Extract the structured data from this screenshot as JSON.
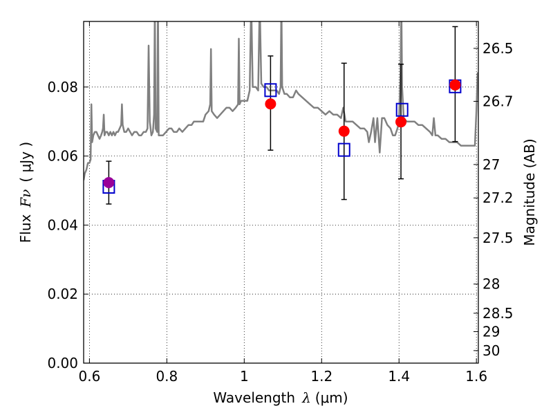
{
  "chart_data": {
    "type": "scatter",
    "title": "",
    "xlabel": "Wavelength",
    "xlabel_symbol": "λ",
    "xlabel_unit": "(μm)",
    "ylabel": "Flux",
    "ylabel_symbol": "Fν",
    "ylabel_unit": "( μJy )",
    "y2label": "Magnitude (AB)",
    "xlim": [
      0.585,
      1.605
    ],
    "ylim": [
      0.0,
      0.099
    ],
    "grid": true,
    "x_ticks": [
      0.6,
      0.8,
      1.0,
      1.2,
      1.4,
      1.6
    ],
    "x_tick_labels": [
      "0.6",
      "0.8",
      "1",
      "1.2",
      "1.4",
      "1.6"
    ],
    "y_ticks": [
      0.0,
      0.02,
      0.04,
      0.06,
      0.08
    ],
    "y_tick_labels": [
      "0.00",
      "0.02",
      "0.04",
      "0.06",
      "0.08"
    ],
    "mag_ticks": [
      26.5,
      26.7,
      27,
      27.2,
      27.5,
      28,
      28.5,
      29,
      30
    ],
    "mag_tick_labels": [
      "26.5",
      "26.7",
      "27",
      "27.2",
      "27.5",
      "28",
      "28.5",
      "29",
      "30"
    ],
    "series": [
      {
        "kind": "spectrum",
        "color": "#808080",
        "points": [
          [
            0.585,
            0.053
          ],
          [
            0.588,
            0.055
          ],
          [
            0.592,
            0.056
          ],
          [
            0.596,
            0.058
          ],
          [
            0.6,
            0.058
          ],
          [
            0.603,
            0.059
          ],
          [
            0.605,
            0.075
          ],
          [
            0.607,
            0.064
          ],
          [
            0.61,
            0.066
          ],
          [
            0.614,
            0.067
          ],
          [
            0.618,
            0.067
          ],
          [
            0.622,
            0.066
          ],
          [
            0.626,
            0.065
          ],
          [
            0.63,
            0.066
          ],
          [
            0.633,
            0.067
          ],
          [
            0.635,
            0.068
          ],
          [
            0.637,
            0.072
          ],
          [
            0.639,
            0.066
          ],
          [
            0.642,
            0.067
          ],
          [
            0.646,
            0.067
          ],
          [
            0.65,
            0.066
          ],
          [
            0.654,
            0.067
          ],
          [
            0.658,
            0.066
          ],
          [
            0.662,
            0.067
          ],
          [
            0.666,
            0.066
          ],
          [
            0.67,
            0.067
          ],
          [
            0.674,
            0.067
          ],
          [
            0.678,
            0.068
          ],
          [
            0.682,
            0.069
          ],
          [
            0.684,
            0.075
          ],
          [
            0.686,
            0.069
          ],
          [
            0.69,
            0.067
          ],
          [
            0.695,
            0.067
          ],
          [
            0.7,
            0.068
          ],
          [
            0.705,
            0.067
          ],
          [
            0.71,
            0.066
          ],
          [
            0.716,
            0.067
          ],
          [
            0.722,
            0.067
          ],
          [
            0.728,
            0.066
          ],
          [
            0.734,
            0.066
          ],
          [
            0.74,
            0.067
          ],
          [
            0.746,
            0.067
          ],
          [
            0.75,
            0.068
          ],
          [
            0.753,
            0.092
          ],
          [
            0.756,
            0.07
          ],
          [
            0.76,
            0.066
          ],
          [
            0.764,
            0.067
          ],
          [
            0.767,
            0.072
          ],
          [
            0.769,
            0.104
          ],
          [
            0.771,
            0.068
          ],
          [
            0.775,
            0.067
          ],
          [
            0.777,
            0.105
          ],
          [
            0.779,
            0.066
          ],
          [
            0.783,
            0.066
          ],
          [
            0.79,
            0.066
          ],
          [
            0.798,
            0.067
          ],
          [
            0.806,
            0.068
          ],
          [
            0.812,
            0.068
          ],
          [
            0.818,
            0.067
          ],
          [
            0.826,
            0.067
          ],
          [
            0.832,
            0.068
          ],
          [
            0.84,
            0.067
          ],
          [
            0.848,
            0.068
          ],
          [
            0.856,
            0.069
          ],
          [
            0.864,
            0.069
          ],
          [
            0.87,
            0.07
          ],
          [
            0.878,
            0.07
          ],
          [
            0.886,
            0.07
          ],
          [
            0.894,
            0.07
          ],
          [
            0.9,
            0.072
          ],
          [
            0.908,
            0.073
          ],
          [
            0.912,
            0.075
          ],
          [
            0.914,
            0.091
          ],
          [
            0.916,
            0.073
          ],
          [
            0.922,
            0.072
          ],
          [
            0.93,
            0.071
          ],
          [
            0.938,
            0.072
          ],
          [
            0.946,
            0.073
          ],
          [
            0.954,
            0.074
          ],
          [
            0.962,
            0.074
          ],
          [
            0.97,
            0.073
          ],
          [
            0.978,
            0.074
          ],
          [
            0.984,
            0.075
          ],
          [
            0.986,
            0.094
          ],
          [
            0.988,
            0.075
          ],
          [
            0.992,
            0.076
          ],
          [
            1.0,
            0.076
          ],
          [
            1.008,
            0.076
          ],
          [
            1.014,
            0.079
          ],
          [
            1.018,
            0.105
          ],
          [
            1.022,
            0.08
          ],
          [
            1.03,
            0.08
          ],
          [
            1.036,
            0.079
          ],
          [
            1.04,
            0.105
          ],
          [
            1.044,
            0.081
          ],
          [
            1.05,
            0.08
          ],
          [
            1.058,
            0.08
          ],
          [
            1.064,
            0.079
          ],
          [
            1.07,
            0.079
          ],
          [
            1.078,
            0.079
          ],
          [
            1.084,
            0.079
          ],
          [
            1.09,
            0.078
          ],
          [
            1.094,
            0.08
          ],
          [
            1.096,
            0.105
          ],
          [
            1.098,
            0.08
          ],
          [
            1.104,
            0.078
          ],
          [
            1.11,
            0.078
          ],
          [
            1.118,
            0.077
          ],
          [
            1.126,
            0.077
          ],
          [
            1.134,
            0.079
          ],
          [
            1.14,
            0.078
          ],
          [
            1.15,
            0.077
          ],
          [
            1.16,
            0.076
          ],
          [
            1.17,
            0.075
          ],
          [
            1.18,
            0.074
          ],
          [
            1.19,
            0.074
          ],
          [
            1.2,
            0.073
          ],
          [
            1.21,
            0.072
          ],
          [
            1.22,
            0.073
          ],
          [
            1.23,
            0.072
          ],
          [
            1.24,
            0.072
          ],
          [
            1.25,
            0.071
          ],
          [
            1.256,
            0.074
          ],
          [
            1.262,
            0.07
          ],
          [
            1.27,
            0.07
          ],
          [
            1.28,
            0.07
          ],
          [
            1.29,
            0.069
          ],
          [
            1.3,
            0.068
          ],
          [
            1.31,
            0.068
          ],
          [
            1.318,
            0.067
          ],
          [
            1.322,
            0.064
          ],
          [
            1.328,
            0.067
          ],
          [
            1.334,
            0.071
          ],
          [
            1.338,
            0.064
          ],
          [
            1.344,
            0.071
          ],
          [
            1.35,
            0.061
          ],
          [
            1.356,
            0.071
          ],
          [
            1.362,
            0.071
          ],
          [
            1.37,
            0.069
          ],
          [
            1.378,
            0.068
          ],
          [
            1.384,
            0.066
          ],
          [
            1.39,
            0.066
          ],
          [
            1.396,
            0.068
          ],
          [
            1.4,
            0.07
          ],
          [
            1.404,
            0.085
          ],
          [
            1.406,
            0.105
          ],
          [
            1.408,
            0.08
          ],
          [
            1.412,
            0.071
          ],
          [
            1.42,
            0.07
          ],
          [
            1.43,
            0.07
          ],
          [
            1.44,
            0.07
          ],
          [
            1.45,
            0.069
          ],
          [
            1.46,
            0.069
          ],
          [
            1.47,
            0.068
          ],
          [
            1.48,
            0.067
          ],
          [
            1.486,
            0.066
          ],
          [
            1.49,
            0.071
          ],
          [
            1.494,
            0.066
          ],
          [
            1.5,
            0.066
          ],
          [
            1.51,
            0.065
          ],
          [
            1.52,
            0.065
          ],
          [
            1.53,
            0.064
          ],
          [
            1.54,
            0.064
          ],
          [
            1.55,
            0.064
          ],
          [
            1.56,
            0.063
          ],
          [
            1.57,
            0.063
          ],
          [
            1.58,
            0.063
          ],
          [
            1.59,
            0.063
          ],
          [
            1.596,
            0.063
          ],
          [
            1.6,
            0.073
          ],
          [
            1.603,
            0.084
          ],
          [
            1.605,
            0.084
          ]
        ]
      },
      {
        "kind": "observed",
        "color": "#ff0000",
        "points": [
          {
            "x": 1.068,
            "y": 0.0751,
            "ylo": 0.0617,
            "yhi": 0.089
          },
          {
            "x": 1.258,
            "y": 0.0672,
            "ylo": 0.0474,
            "yhi": 0.0869
          },
          {
            "x": 1.405,
            "y": 0.0699,
            "ylo": 0.0534,
            "yhi": 0.0866
          },
          {
            "x": 1.545,
            "y": 0.0806,
            "ylo": 0.0642,
            "yhi": 0.0975
          }
        ]
      },
      {
        "kind": "observed",
        "color": "#990099",
        "points": [
          {
            "x": 0.65,
            "y": 0.0523,
            "ylo": 0.0461,
            "yhi": 0.0585
          }
        ]
      },
      {
        "kind": "model",
        "color": "#0000cc",
        "points": [
          {
            "x": 0.65,
            "y": 0.0511
          },
          {
            "x": 1.068,
            "y": 0.0791
          },
          {
            "x": 1.258,
            "y": 0.0618
          },
          {
            "x": 1.408,
            "y": 0.0734
          },
          {
            "x": 1.545,
            "y": 0.0802
          }
        ]
      }
    ]
  }
}
